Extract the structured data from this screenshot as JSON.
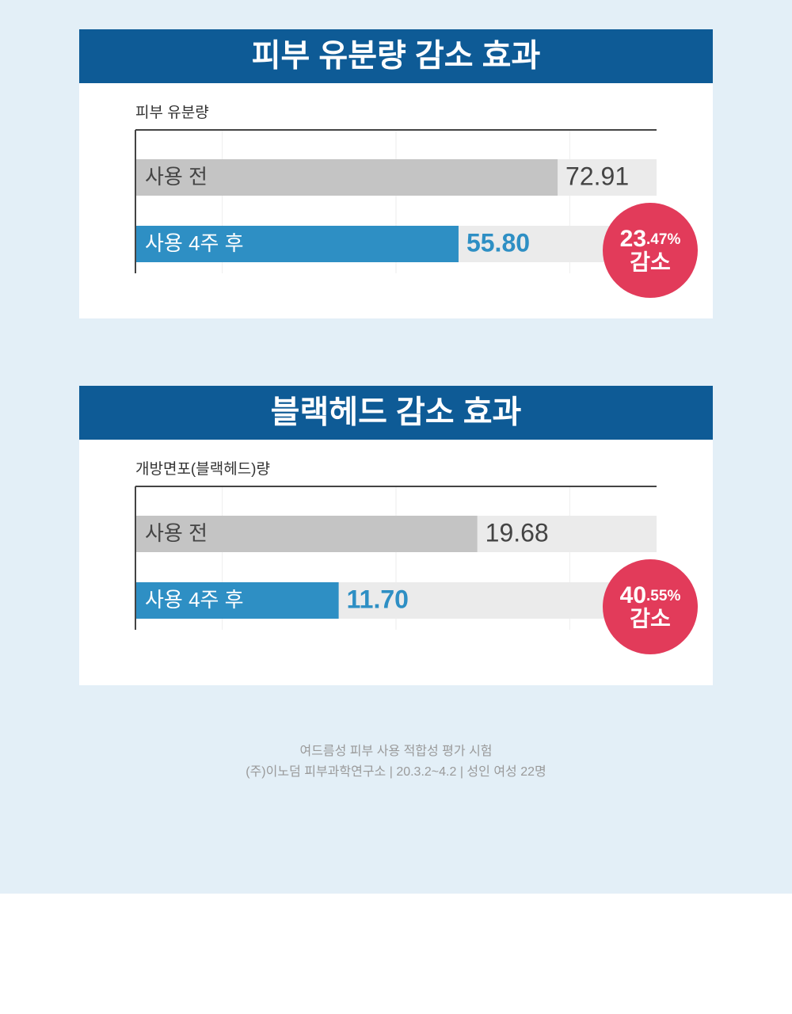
{
  "chart_data": [
    {
      "type": "bar",
      "orientation": "horizontal",
      "title": "피부 유분량 감소 효과",
      "axis_label": "피부 유분량",
      "categories": [
        "사용 전",
        "사용 4주 후"
      ],
      "values": [
        72.91,
        55.8
      ],
      "value_labels": [
        "72.91",
        "55.80"
      ],
      "colors": [
        "#c4c4c4",
        "#2e8fc4"
      ],
      "xlim": [
        0,
        90
      ],
      "xticks": [
        15,
        45,
        75
      ],
      "grid": true,
      "badge": {
        "number": "23",
        "fraction": ".47%",
        "label": "감소"
      }
    },
    {
      "type": "bar",
      "orientation": "horizontal",
      "title": "블랙헤드 감소 효과",
      "axis_label": "개방면포(블랙헤드)량",
      "categories": [
        "사용 전",
        "사용 4주 후"
      ],
      "values": [
        19.68,
        11.7
      ],
      "value_labels": [
        "19.68",
        "11.70"
      ],
      "colors": [
        "#c4c4c4",
        "#2e8fc4"
      ],
      "xlim": [
        0,
        30
      ],
      "xticks": [
        5,
        15,
        25
      ],
      "grid": true,
      "badge": {
        "number": "40",
        "fraction": ".55%",
        "label": "감소"
      }
    }
  ],
  "footer": {
    "lines": [
      "여드름성 피부 사용 적합성 평가 시험",
      "(주)이노덤 피부과학연구소 | 20.3.2~4.2 | 성인 여성 22명"
    ]
  }
}
